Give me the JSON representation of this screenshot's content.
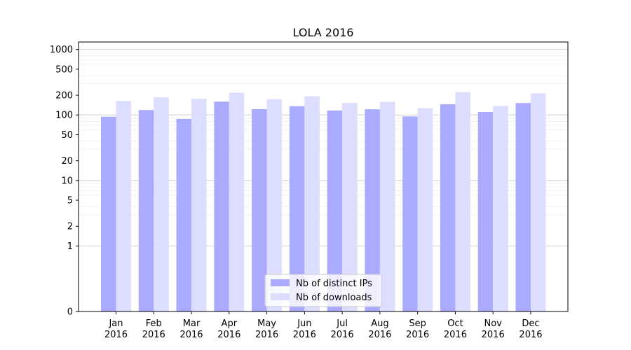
{
  "chart_data": {
    "type": "bar",
    "title": "LOLA 2016",
    "xlabel": "",
    "ylabel": "",
    "yscale": "symlog",
    "ylim": [
      0,
      1300
    ],
    "yticks": [
      0,
      1,
      2,
      5,
      10,
      20,
      50,
      100,
      200,
      500,
      1000
    ],
    "grid": true,
    "legend_position": "bottom-center",
    "categories": [
      {
        "month": "Jan",
        "year": "2016"
      },
      {
        "month": "Feb",
        "year": "2016"
      },
      {
        "month": "Mar",
        "year": "2016"
      },
      {
        "month": "Apr",
        "year": "2016"
      },
      {
        "month": "May",
        "year": "2016"
      },
      {
        "month": "Jun",
        "year": "2016"
      },
      {
        "month": "Jul",
        "year": "2016"
      },
      {
        "month": "Aug",
        "year": "2016"
      },
      {
        "month": "Sep",
        "year": "2016"
      },
      {
        "month": "Oct",
        "year": "2016"
      },
      {
        "month": "Nov",
        "year": "2016"
      },
      {
        "month": "Dec",
        "year": "2016"
      }
    ],
    "series": [
      {
        "name": "Nb of distinct IPs",
        "color": "#aaaaff",
        "values": [
          94,
          119,
          87,
          160,
          123,
          136,
          117,
          122,
          95,
          146,
          111,
          152
        ]
      },
      {
        "name": "Nb of downloads",
        "color": "#ddddff",
        "values": [
          163,
          186,
          177,
          219,
          174,
          193,
          153,
          158,
          127,
          224,
          137,
          214
        ]
      }
    ]
  }
}
